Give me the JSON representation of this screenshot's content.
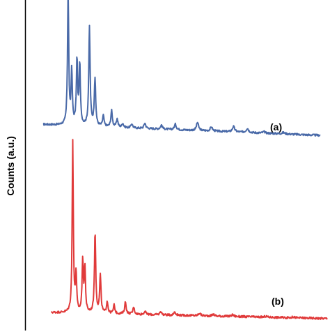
{
  "chart_data": {
    "type": "line",
    "ylabel": "Counts (a.u.)",
    "xlabel": "",
    "title": "",
    "x_range": [
      0,
      100
    ],
    "grid": false,
    "legend": "none",
    "series": [
      {
        "label": "(a)",
        "color": "#4a6aa8",
        "peaks": [
          [
            9.0,
            100
          ],
          [
            10.3,
            40
          ],
          [
            12.2,
            48
          ],
          [
            13.2,
            45
          ],
          [
            16.7,
            73
          ],
          [
            18.7,
            35
          ],
          [
            21.7,
            8
          ],
          [
            24.7,
            12
          ],
          [
            26.7,
            6
          ],
          [
            28.7,
            3
          ],
          [
            32.0,
            3
          ],
          [
            36.7,
            4
          ],
          [
            42.7,
            3
          ],
          [
            47.7,
            4
          ],
          [
            55.7,
            6
          ],
          [
            60.7,
            3
          ],
          [
            68.7,
            4
          ],
          [
            73.7,
            3
          ],
          [
            79.7,
            1
          ],
          [
            86.7,
            1
          ]
        ],
        "baseline_start": 9.0,
        "baseline_end": 1.0,
        "noise": 0.7
      },
      {
        "label": "(b)",
        "color": "#e03a3a",
        "peaks": [
          [
            7.7,
            100
          ],
          [
            8.9,
            22
          ],
          [
            11.3,
            30
          ],
          [
            12.1,
            26
          ],
          [
            15.8,
            47
          ],
          [
            17.7,
            22
          ],
          [
            20.2,
            7
          ],
          [
            22.7,
            5
          ],
          [
            26.8,
            7
          ],
          [
            29.8,
            4
          ],
          [
            33.9,
            2
          ],
          [
            39.6,
            2
          ],
          [
            44.7,
            2
          ],
          [
            53.7,
            1.5
          ],
          [
            58.7,
            1
          ],
          [
            65.7,
            1
          ],
          [
            77.7,
            0.5
          ],
          [
            87.7,
            0.5
          ]
        ],
        "baseline_start": 4.0,
        "baseline_end": 0.5,
        "noise": 0.6
      }
    ]
  }
}
